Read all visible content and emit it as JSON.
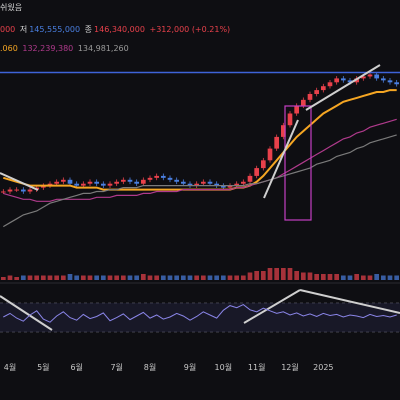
{
  "header": {
    "notice": "쉬웠음",
    "row2": {
      "v1": "000",
      "low_label": "저",
      "low_value": "145,555,000",
      "close_label": "종",
      "close_value": "146,340,000",
      "change": "+312,000 (+0.21%)"
    },
    "row3": {
      "ma_fast": ".060",
      "ma_mid": "132,239,380",
      "ma_slow": "134,981,260"
    }
  },
  "colors": {
    "background": "#0e0e12",
    "up": "#e8414b",
    "down": "#4a7fe0",
    "ma_fast": "#f5a623",
    "ma_mid": "#b03a8c",
    "ma_slow": "#7a7a7a",
    "resistance": "#3e63d8",
    "highlight_box": "#c43fc4",
    "rsi": "#8a85e8",
    "trendline": "#cfcfcf"
  },
  "chart_data": {
    "type": "line",
    "series": [
      {
        "values": [
          30,
          31,
          31,
          30,
          31,
          32,
          33,
          34,
          35,
          36,
          34,
          33,
          34,
          35,
          34,
          33,
          34,
          35,
          36,
          35,
          34,
          36,
          37,
          38,
          37,
          36,
          35,
          34,
          33,
          34,
          35,
          34,
          33,
          32,
          33,
          34,
          35,
          38,
          42,
          46,
          52,
          58,
          64,
          70,
          74,
          77,
          80,
          82,
          84,
          86,
          88,
          87,
          86,
          88,
          89,
          90,
          88,
          87,
          86,
          85
        ]
      },
      {
        "values": [
          37,
          36,
          35,
          34,
          33,
          33,
          33,
          33,
          33,
          33,
          33,
          32,
          32,
          32,
          32,
          31,
          31,
          31,
          31,
          31,
          31,
          31,
          31,
          31,
          31,
          31,
          31,
          31,
          31,
          31,
          31,
          31,
          31,
          31,
          31,
          32,
          32,
          33,
          35,
          38,
          42,
          46,
          50,
          54,
          58,
          61,
          64,
          67,
          70,
          72,
          74,
          76,
          77,
          78,
          79,
          80,
          81,
          81,
          82,
          82
        ]
      },
      {
        "values": [
          29,
          28,
          27,
          26,
          26,
          25,
          25,
          25,
          26,
          26,
          26,
          26,
          26,
          26,
          27,
          27,
          27,
          28,
          28,
          28,
          28,
          29,
          29,
          30,
          30,
          30,
          30,
          31,
          31,
          31,
          31,
          31,
          31,
          31,
          31,
          32,
          32,
          33,
          34,
          35,
          36,
          37,
          39,
          41,
          43,
          45,
          47,
          49,
          51,
          53,
          55,
          57,
          58,
          60,
          61,
          63,
          64,
          65,
          66,
          67
        ]
      },
      {
        "values": [
          12,
          14,
          16,
          18,
          19,
          20,
          22,
          24,
          25,
          26,
          27,
          28,
          29,
          29,
          30,
          30,
          31,
          31,
          32,
          32,
          32,
          33,
          33,
          33,
          33,
          33,
          33,
          33,
          33,
          33,
          33,
          33,
          33,
          33,
          33,
          33,
          33,
          34,
          34,
          35,
          36,
          37,
          38,
          39,
          40,
          41,
          42,
          44,
          45,
          46,
          48,
          49,
          50,
          52,
          53,
          55,
          56,
          57,
          58,
          59
        ]
      }
    ],
    "resistance_level": 91,
    "ylim": [
      0,
      100
    ],
    "x_ticks": [
      {
        "label": "4월",
        "index": 1
      },
      {
        "label": "5월",
        "index": 6
      },
      {
        "label": "6월",
        "index": 11
      },
      {
        "label": "7월",
        "index": 17
      },
      {
        "label": "8월",
        "index": 22
      },
      {
        "label": "9월",
        "index": 28
      },
      {
        "label": "10월",
        "index": 33
      },
      {
        "label": "11월",
        "index": 38
      },
      {
        "label": "12월",
        "index": 43
      },
      {
        "label": "2025",
        "index": 48
      }
    ],
    "rsi": {
      "values": [
        48,
        55,
        46,
        40,
        52,
        60,
        44,
        38,
        50,
        58,
        47,
        42,
        53,
        45,
        49,
        56,
        41,
        47,
        54,
        43,
        50,
        57,
        46,
        52,
        44,
        48,
        55,
        50,
        42,
        49,
        58,
        52,
        46,
        61,
        70,
        66,
        72,
        62,
        58,
        65,
        60,
        55,
        58,
        52,
        56,
        50,
        54,
        49,
        55,
        51,
        53,
        48,
        52,
        50,
        47,
        53,
        49,
        51,
        48,
        52
      ]
    }
  }
}
